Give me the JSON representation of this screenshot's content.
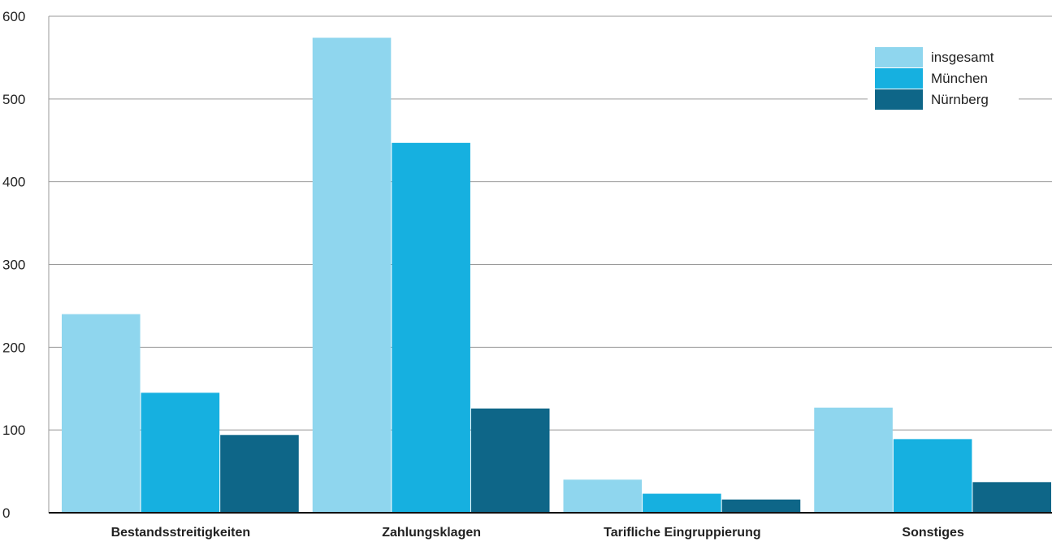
{
  "chart_data": {
    "type": "bar",
    "categories": [
      "Bestandsstreitigkeiten",
      "Zahlungsklagen",
      "Tarifliche Eingruppierung",
      "Sonstiges"
    ],
    "series": [
      {
        "name": "insgesamt",
        "values": [
          240,
          574,
          40,
          127
        ],
        "color": "#8fd6ee"
      },
      {
        "name": "München",
        "values": [
          145,
          447,
          23,
          89
        ],
        "color": "#16b0e0"
      },
      {
        "name": "Nürnberg",
        "values": [
          94,
          126,
          16,
          37
        ],
        "color": "#0e6688"
      }
    ],
    "ylim": [
      0,
      600
    ],
    "yticks": [
      "0",
      "100",
      "200",
      "300",
      "400",
      "500",
      "600"
    ],
    "grid": true,
    "legend": "top-right",
    "title": "",
    "xlabel": "",
    "ylabel": ""
  }
}
